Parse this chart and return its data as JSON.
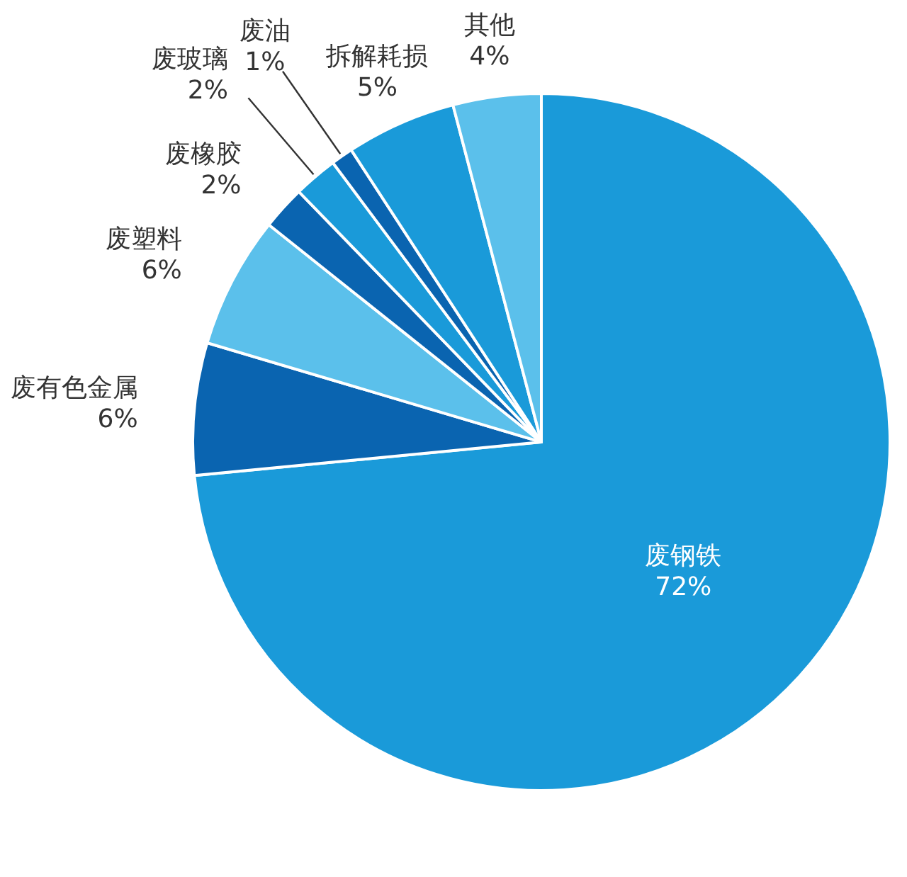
{
  "chart_data": {
    "type": "pie",
    "categories": [
      "废钢铁",
      "废有色金属",
      "废塑料",
      "废橡胶",
      "废玻璃",
      "废油",
      "拆解耗损",
      "其他"
    ],
    "values": [
      72,
      6,
      6,
      2,
      2,
      1,
      5,
      4
    ],
    "colors": [
      "#1a9ad9",
      "#0a64b0",
      "#5bc0eb",
      "#0a64b0",
      "#1a9ad9",
      "#0a64b0",
      "#1a9ad9",
      "#5bc0eb"
    ],
    "value_labels": [
      "72%",
      "6%",
      "6%",
      "2%",
      "2%",
      "1%",
      "5%",
      "4%"
    ]
  }
}
